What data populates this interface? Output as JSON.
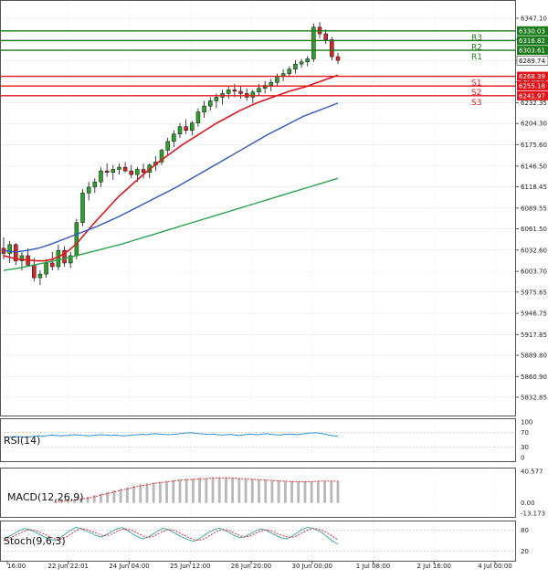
{
  "chart_data": {
    "type": "candlestick",
    "instrument_panel": {
      "price_ticks": [
        "6347.10",
        "6318.35",
        "6289.74",
        "6260.85",
        "6232.35",
        "6204.30",
        "6175.60",
        "6146.50",
        "6118.45",
        "6089.55",
        "6061.50",
        "6032.60",
        "6003.70",
        "5975.65",
        "5946.75",
        "5917.85",
        "5889.80",
        "5860.90",
        "5832.85"
      ],
      "price_ticks_numeric": [
        6347.1,
        6318.35,
        6289.74,
        6260.85,
        6232.35,
        6204.3,
        6175.6,
        6146.5,
        6118.45,
        6089.55,
        6061.5,
        6032.6,
        6003.7,
        5975.65,
        5946.75,
        5917.85,
        5889.8,
        5860.9,
        5832.85
      ],
      "ylim": [
        5832.85,
        6347.1
      ],
      "x_ticks": [
        "16:00",
        "22 Jun 22:01",
        "24 Jun 04:00",
        "25 Jun 12:00",
        "26 Jun 20:00",
        "30 Jun 00:00",
        "1 Jul 08:00",
        "2 Jul 16:00",
        "4 Jul 00:00"
      ],
      "last_price": "6289.74",
      "levels": [
        {
          "name": "R3",
          "value": "6330.03",
          "color": "#1b7a1b"
        },
        {
          "name": "R2",
          "value": "6316.82",
          "color": "#1b7a1b"
        },
        {
          "name": "R1",
          "value": "6303.61",
          "color": "#1b7a1b"
        },
        {
          "name": "S1",
          "value": "6268.39",
          "color": "#e0151c"
        },
        {
          "name": "S2",
          "value": "6255.18",
          "color": "#e0151c"
        },
        {
          "name": "S3",
          "value": "6241.97",
          "color": "#e0151c"
        }
      ],
      "ohlc": [
        [
          6035,
          6050,
          6020,
          6028
        ],
        [
          6028,
          6045,
          6015,
          6040
        ],
        [
          6040,
          6042,
          6012,
          6018
        ],
        [
          6018,
          6030,
          6005,
          6025
        ],
        [
          6025,
          6035,
          6010,
          6012
        ],
        [
          6012,
          6022,
          5990,
          5995
        ],
        [
          5995,
          6005,
          5985,
          6000
        ],
        [
          6000,
          6020,
          5995,
          6015
        ],
        [
          6015,
          6030,
          6005,
          6010
        ],
        [
          6010,
          6040,
          6005,
          6032
        ],
        [
          6032,
          6038,
          6010,
          6015
        ],
        [
          6015,
          6030,
          6008,
          6025
        ],
        [
          6025,
          6075,
          6020,
          6070
        ],
        [
          6070,
          6115,
          6065,
          6110
        ],
        [
          6110,
          6125,
          6100,
          6118
        ],
        [
          6118,
          6130,
          6110,
          6125
        ],
        [
          6125,
          6145,
          6118,
          6140
        ],
        [
          6140,
          6150,
          6132,
          6138
        ],
        [
          6138,
          6148,
          6128,
          6142
        ],
        [
          6142,
          6150,
          6135,
          6145
        ],
        [
          6145,
          6152,
          6138,
          6140
        ],
        [
          6140,
          6148,
          6130,
          6135
        ],
        [
          6135,
          6145,
          6125,
          6142
        ],
        [
          6142,
          6150,
          6130,
          6138
        ],
        [
          6138,
          6150,
          6130,
          6148
        ],
        [
          6148,
          6160,
          6140,
          6152
        ],
        [
          6152,
          6170,
          6148,
          6168
        ],
        [
          6168,
          6185,
          6162,
          6180
        ],
        [
          6180,
          6195,
          6172,
          6190
        ],
        [
          6190,
          6205,
          6185,
          6200
        ],
        [
          6200,
          6210,
          6190,
          6195
        ],
        [
          6195,
          6208,
          6188,
          6205
        ],
        [
          6205,
          6225,
          6200,
          6220
        ],
        [
          6220,
          6235,
          6212,
          6228
        ],
        [
          6228,
          6240,
          6222,
          6235
        ],
        [
          6235,
          6245,
          6225,
          6240
        ],
        [
          6240,
          6250,
          6230,
          6245
        ],
        [
          6245,
          6255,
          6238,
          6250
        ],
        [
          6250,
          6258,
          6240,
          6248
        ],
        [
          6248,
          6255,
          6238,
          6245
        ],
        [
          6245,
          6252,
          6235,
          6240
        ],
        [
          6240,
          6250,
          6232,
          6247
        ],
        [
          6247,
          6258,
          6242,
          6252
        ],
        [
          6252,
          6262,
          6245,
          6256
        ],
        [
          6256,
          6265,
          6248,
          6260
        ],
        [
          6260,
          6272,
          6255,
          6268
        ],
        [
          6268,
          6278,
          6262,
          6272
        ],
        [
          6272,
          6282,
          6268,
          6278
        ],
        [
          6278,
          6290,
          6272,
          6285
        ],
        [
          6285,
          6292,
          6280,
          6288
        ],
        [
          6288,
          6296,
          6282,
          6292
        ],
        [
          6292,
          6340,
          6288,
          6335
        ],
        [
          6335,
          6342,
          6320,
          6326
        ],
        [
          6326,
          6332,
          6312,
          6318
        ],
        [
          6318,
          6322,
          6290,
          6295
        ],
        [
          6295,
          6300,
          6285,
          6290
        ]
      ],
      "ma_fast_label": "",
      "ma_series": [
        {
          "color": "#e0151c",
          "values": [
            6025,
            6022,
            6020,
            6019,
            6018,
            6018,
            6020,
            6025,
            6032,
            6042,
            6055,
            6068,
            6080,
            6092,
            6104,
            6114,
            6124,
            6134,
            6143,
            6152,
            6160,
            6168,
            6176,
            6183,
            6190,
            6197,
            6204,
            6210,
            6216,
            6222,
            6227,
            6232,
            6236,
            6240,
            6244,
            6248,
            6251,
            6254,
            6258,
            6262,
            6266,
            6270
          ]
        },
        {
          "color": "#3257c2",
          "values": [
            6032,
            6030,
            6032,
            6035,
            6040,
            6046,
            6052,
            6058,
            6064,
            6071,
            6078,
            6086,
            6094,
            6102,
            6110,
            6118,
            6127,
            6136,
            6145,
            6154,
            6163,
            6172,
            6181,
            6190,
            6198,
            6206,
            6214,
            6220,
            6226,
            6232
          ]
        },
        {
          "color": "#2ea34f",
          "values": [
            6005,
            6008,
            6012,
            6016,
            6020,
            6025,
            6030,
            6035,
            6040,
            6046,
            6052,
            6058,
            6064,
            6070,
            6076,
            6082,
            6088,
            6094,
            6100,
            6106,
            6112,
            6118,
            6124,
            6130
          ]
        }
      ]
    },
    "rsi_panel": {
      "label": "RSI(14)",
      "ticks": [
        "100",
        "70",
        "30",
        "0"
      ],
      "ylim": [
        0,
        100
      ],
      "values": [
        58,
        57,
        58,
        59,
        58,
        57,
        58,
        60,
        61,
        60,
        62,
        63,
        62,
        61,
        62,
        63,
        64,
        63,
        62,
        61,
        62,
        63,
        64,
        63,
        62,
        63,
        62,
        61,
        62,
        63,
        64,
        65,
        64,
        66,
        67,
        66,
        65,
        64,
        65,
        66,
        68,
        69,
        70,
        68,
        67,
        66,
        65,
        66,
        64,
        63,
        64,
        65,
        63,
        62,
        64,
        66,
        65,
        64,
        66,
        67,
        65,
        64,
        63,
        65,
        66,
        65,
        64,
        66,
        68,
        69,
        70,
        68,
        66,
        63,
        61,
        60
      ]
    },
    "macd_panel": {
      "label": "MACD(12,26,9)",
      "ticks": [
        "40.577",
        "0.00",
        "-13.173"
      ],
      "ylim": [
        -13.173,
        40.577
      ],
      "histogram": [
        2,
        3,
        4,
        5,
        6,
        8,
        10,
        12,
        14,
        16,
        18,
        20,
        22,
        24,
        25,
        26,
        27,
        28,
        29,
        30,
        31,
        31,
        32,
        32,
        33,
        33,
        33,
        32,
        32,
        31,
        31,
        30,
        30,
        29,
        29,
        28,
        28,
        27,
        27,
        27,
        28,
        28,
        28,
        28
      ],
      "signal": [
        1,
        2,
        3,
        4,
        5,
        6,
        8,
        10,
        12,
        14,
        16,
        18,
        20,
        22,
        23,
        25,
        26,
        27,
        28,
        29,
        30,
        30,
        31,
        31,
        32,
        32,
        32,
        32,
        31,
        31,
        30,
        30,
        29,
        29,
        28,
        28,
        27,
        27,
        27,
        27,
        28,
        28,
        28,
        28
      ]
    },
    "stoch_panel": {
      "label": "Stoch(9,6,3)",
      "ticks": [
        "80",
        "20"
      ],
      "ylim": [
        0,
        100
      ],
      "k": [
        55,
        62,
        70,
        78,
        85,
        82,
        75,
        68,
        60,
        55,
        50,
        58,
        70,
        80,
        88,
        85,
        78,
        72,
        65,
        60,
        68,
        76,
        84,
        88,
        80,
        70,
        62,
        55,
        60,
        68,
        78,
        86,
        82,
        74,
        66,
        58,
        52,
        48,
        55,
        65,
        75,
        82,
        86,
        80,
        72,
        64,
        58,
        62,
        70,
        78,
        84,
        80,
        72,
        65,
        58,
        55,
        62,
        72,
        82,
        88,
        86,
        80,
        72,
        60,
        48,
        40
      ],
      "d": [
        50,
        56,
        63,
        70,
        77,
        82,
        80,
        75,
        68,
        61,
        55,
        54,
        59,
        68,
        78,
        85,
        83,
        78,
        72,
        66,
        64,
        69,
        76,
        83,
        84,
        79,
        72,
        64,
        59,
        62,
        69,
        77,
        82,
        80,
        74,
        66,
        59,
        53,
        51,
        55,
        64,
        73,
        80,
        82,
        78,
        71,
        64,
        60,
        64,
        71,
        78,
        81,
        78,
        72,
        66,
        61,
        59,
        64,
        72,
        80,
        85,
        84,
        79,
        72,
        62,
        52
      ]
    }
  }
}
